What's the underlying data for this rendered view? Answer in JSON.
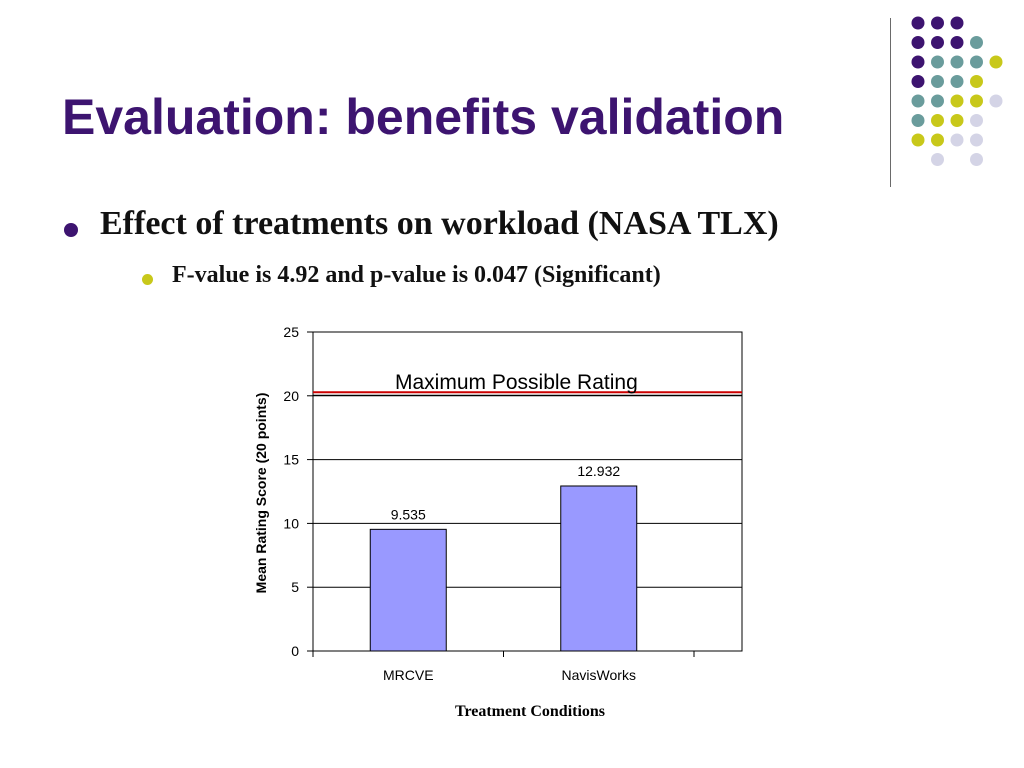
{
  "slide": {
    "title": "Evaluation: benefits validation",
    "bullets": [
      "Effect of treatments on workload (NASA TLX)",
      "F-value is 4.92 and p-value is 0.047 (Significant)"
    ]
  },
  "decor": {
    "colors": {
      "purple": "#3d1470",
      "teal": "#6a9c9c",
      "yellow": "#c8c81a",
      "lavender": "#d4d4e6"
    },
    "dot_rows": [
      [
        "purple",
        "purple",
        "purple",
        null,
        null
      ],
      [
        "purple",
        "purple",
        "purple",
        "teal",
        null
      ],
      [
        "purple",
        "teal",
        "teal",
        "teal",
        "yellow"
      ],
      [
        "purple",
        "teal",
        "teal",
        "yellow",
        null
      ],
      [
        "teal",
        "teal",
        "yellow",
        "yellow",
        "lavender"
      ],
      [
        "teal",
        "yellow",
        "yellow",
        "lavender",
        null
      ],
      [
        "yellow",
        "yellow",
        "lavender",
        "lavender",
        null
      ],
      [
        null,
        "lavender",
        null,
        "lavender",
        null
      ]
    ]
  },
  "chart_data": {
    "type": "bar",
    "categories": [
      "MRCVE",
      "NavisWorks"
    ],
    "values": [
      9.535,
      12.932
    ],
    "value_labels": [
      "9.535",
      "12.932"
    ],
    "xlabel": "Treatment Conditions",
    "ylabel": "Mean Rating Score (20 points)",
    "ylim": [
      0,
      25
    ],
    "yticks": [
      0,
      5,
      10,
      15,
      20,
      25
    ],
    "grid": true,
    "bar_color": "#9999ff",
    "reference_line": {
      "value": 20.2,
      "label": "Maximum Possible Rating",
      "color": "#cc0000"
    }
  }
}
